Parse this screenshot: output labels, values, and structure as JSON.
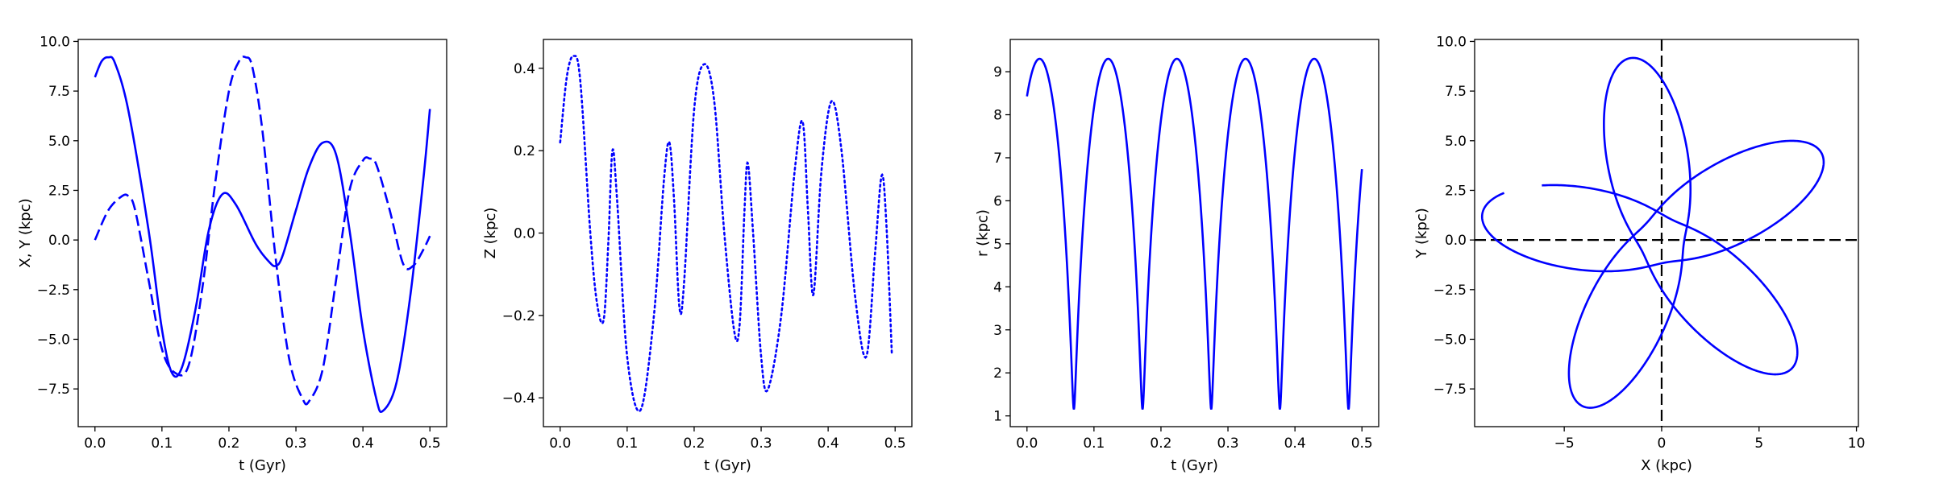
{
  "chart_data": [
    {
      "type": "line",
      "xlabel": "t (Gyr)",
      "ylabel": "X, Y (kpc)",
      "xlim": [
        -0.025,
        0.525
      ],
      "ylim": [
        -9.4,
        10.1
      ],
      "xticks": [
        0.0,
        0.1,
        0.2,
        0.3,
        0.4,
        0.5
      ],
      "xtick_labels": [
        "0.0",
        "0.1",
        "0.2",
        "0.3",
        "0.4",
        "0.5"
      ],
      "yticks": [
        -7.5,
        -5.0,
        -2.5,
        0.0,
        2.5,
        5.0,
        7.5,
        10.0
      ],
      "ytick_labels": [
        "−7.5",
        "−5.0",
        "−2.5",
        "0.0",
        "2.5",
        "5.0",
        "7.5",
        "10.0"
      ],
      "color": "#0000ff",
      "series": [
        {
          "linestyle": "solid",
          "x": [
            0.0,
            0.01,
            0.02,
            0.03,
            0.05,
            0.08,
            0.1,
            0.115,
            0.13,
            0.15,
            0.17,
            0.19,
            0.21,
            0.24,
            0.26,
            0.27,
            0.28,
            0.3,
            0.32,
            0.34,
            0.36,
            0.38,
            0.4,
            0.42,
            0.43,
            0.45,
            0.47,
            0.49,
            0.5
          ],
          "y": [
            8.2,
            9.0,
            9.2,
            8.9,
            6.5,
            0.5,
            -4.5,
            -6.7,
            -6.4,
            -3.5,
            0.5,
            2.3,
            1.8,
            -0.2,
            -1.1,
            -1.3,
            -0.8,
            1.5,
            3.7,
            4.9,
            4.3,
            0.5,
            -4.5,
            -8.0,
            -8.6,
            -7.2,
            -3.0,
            3.0,
            6.6
          ]
        },
        {
          "linestyle": "dashed",
          "x": [
            0.0,
            0.02,
            0.04,
            0.05,
            0.06,
            0.08,
            0.1,
            0.12,
            0.14,
            0.16,
            0.18,
            0.2,
            0.215,
            0.225,
            0.235,
            0.25,
            0.27,
            0.29,
            0.31,
            0.32,
            0.34,
            0.36,
            0.38,
            0.4,
            0.41,
            0.42,
            0.44,
            0.46,
            0.475,
            0.49,
            0.5
          ],
          "y": [
            0.0,
            1.5,
            2.2,
            2.2,
            1.5,
            -2.0,
            -5.5,
            -6.7,
            -6.3,
            -2.5,
            3.0,
            7.5,
            9.0,
            9.2,
            8.7,
            5.5,
            -1.0,
            -6.0,
            -8.0,
            -8.1,
            -6.5,
            -2.0,
            2.5,
            4.0,
            4.1,
            3.8,
            1.5,
            -1.2,
            -1.3,
            -0.5,
            0.2
          ]
        }
      ]
    },
    {
      "type": "line",
      "xlabel": "t (Gyr)",
      "ylabel": "Z (kpc)",
      "xlim": [
        -0.025,
        0.525
      ],
      "ylim": [
        -0.47,
        0.47
      ],
      "xticks": [
        0.0,
        0.1,
        0.2,
        0.3,
        0.4,
        0.5
      ],
      "xtick_labels": [
        "0.0",
        "0.1",
        "0.2",
        "0.3",
        "0.4",
        "0.5"
      ],
      "yticks": [
        -0.4,
        -0.2,
        0.0,
        0.2,
        0.4
      ],
      "ytick_labels": [
        "−0.4",
        "−0.2",
        "0.0",
        "0.2",
        "0.4"
      ],
      "color": "#0000ff",
      "series": [
        {
          "linestyle": "dotted",
          "x": [
            0.0,
            0.01,
            0.02,
            0.03,
            0.045,
            0.055,
            0.065,
            0.072,
            0.078,
            0.085,
            0.1,
            0.12,
            0.14,
            0.155,
            0.163,
            0.17,
            0.178,
            0.185,
            0.2,
            0.215,
            0.23,
            0.245,
            0.26,
            0.268,
            0.275,
            0.28,
            0.288,
            0.3,
            0.31,
            0.33,
            0.35,
            0.362,
            0.37,
            0.378,
            0.39,
            0.405,
            0.42,
            0.44,
            0.457,
            0.47,
            0.48,
            0.487,
            0.495
          ],
          "y": [
            0.22,
            0.38,
            0.43,
            0.37,
            0.0,
            -0.17,
            -0.21,
            -0.02,
            0.2,
            0.08,
            -0.3,
            -0.43,
            -0.2,
            0.13,
            0.22,
            0.08,
            -0.18,
            -0.12,
            0.3,
            0.41,
            0.32,
            0.0,
            -0.24,
            -0.22,
            0.05,
            0.17,
            0.0,
            -0.3,
            -0.38,
            -0.2,
            0.15,
            0.27,
            0.05,
            -0.15,
            0.15,
            0.32,
            0.2,
            -0.15,
            -0.3,
            -0.05,
            0.14,
            0.02,
            -0.29
          ]
        }
      ]
    },
    {
      "type": "line",
      "xlabel": "t (Gyr)",
      "ylabel": "r (kpc)",
      "xlim": [
        -0.025,
        0.525
      ],
      "ylim": [
        0.75,
        9.75
      ],
      "xticks": [
        0.0,
        0.1,
        0.2,
        0.3,
        0.4,
        0.5
      ],
      "xtick_labels": [
        "0.0",
        "0.1",
        "0.2",
        "0.3",
        "0.4",
        "0.5"
      ],
      "yticks": [
        1,
        2,
        3,
        4,
        5,
        6,
        7,
        8,
        9
      ],
      "ytick_labels": [
        "1",
        "2",
        "3",
        "4",
        "5",
        "6",
        "7",
        "8",
        "9"
      ],
      "color": "#0000ff",
      "period_gyr": 0.1025,
      "series": [
        {
          "linestyle": "solid",
          "rmin": 1.15,
          "rmax": 9.3,
          "t_rmin": [
            0.07,
            0.172,
            0.275,
            0.378,
            0.48
          ],
          "t_rmax": [
            0.02,
            0.122,
            0.224,
            0.327,
            0.43
          ],
          "t_start": 0.0,
          "r_start": 8.2,
          "t_end": 0.5,
          "r_end": 6.6
        }
      ]
    },
    {
      "type": "line",
      "xlabel": "X (kpc)",
      "ylabel": "Y (kpc)",
      "xlim": [
        -9.6,
        10.1
      ],
      "ylim": [
        -9.4,
        10.1
      ],
      "xticks": [
        -5,
        0,
        5,
        10
      ],
      "xtick_labels": [
        "−5",
        "0",
        "5",
        "10"
      ],
      "yticks": [
        -7.5,
        -5.0,
        -2.5,
        0.0,
        2.5,
        5.0,
        7.5,
        10.0
      ],
      "ytick_labels": [
        "−7.5",
        "−5.0",
        "−2.5",
        "0.0",
        "2.5",
        "5.0",
        "7.5",
        "10.0"
      ],
      "color": "#0000ff",
      "reference_lines": [
        {
          "orientation": "vertical",
          "value": 0,
          "linestyle": "dashed",
          "color": "#000000"
        },
        {
          "orientation": "horizontal",
          "value": 0,
          "linestyle": "dashed",
          "color": "#000000"
        }
      ],
      "series": [
        {
          "linestyle": "solid",
          "rmin": 1.15,
          "rmax": 9.3,
          "radial_period_gyr": 0.1025,
          "time_span_gyr": [
            0.0,
            0.5
          ],
          "phi_at_t0_deg": 1.4,
          "phi_at_pericenter_deg": -80,
          "phi_advance_per_period_deg": 216,
          "pericenter_t_gyr": 0.07
        }
      ]
    }
  ]
}
